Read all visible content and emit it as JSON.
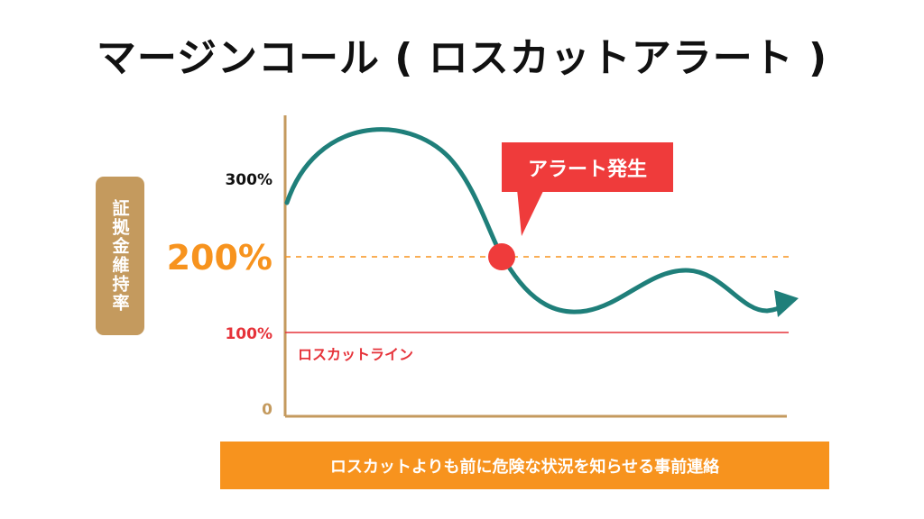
{
  "title": "マージンコール ( ロスカットアラート )",
  "y_axis_label": "証拠金維持率",
  "ticks": {
    "t300": "300%",
    "t200": "200%",
    "t100": "100%",
    "t0": "0"
  },
  "losscut_label": "ロスカットライン",
  "alert_label": "アラート発生",
  "footer": "ロスカットよりも前に危険な状況を知らせる事前連絡",
  "colors": {
    "curve": "#1f7f7a",
    "alert": "#ef3b3b",
    "threshold": "#f7931e",
    "losscut": "#e6333a",
    "axis": "#c49a5e"
  }
}
